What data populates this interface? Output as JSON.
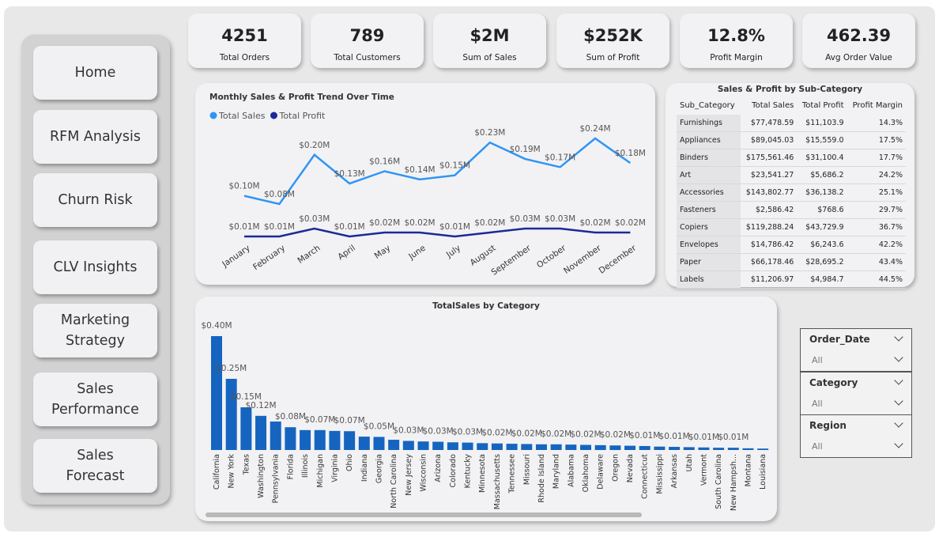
{
  "nav": [
    "Home",
    "RFM Analysis",
    "Churn Risk",
    "CLV Insights",
    "Marketing Strategy",
    "Sales Performance",
    "Sales Forecast"
  ],
  "kpis": [
    {
      "value": "4251",
      "label": "Total Orders"
    },
    {
      "value": "789",
      "label": "Total Customers"
    },
    {
      "value": "$2M",
      "label": "Sum of Sales"
    },
    {
      "value": "$252K",
      "label": "Sum of Profit"
    },
    {
      "value": "12.8%",
      "label": "Profit Margin"
    },
    {
      "value": "462.39",
      "label": "Avg Order Value"
    }
  ],
  "chart_data": [
    {
      "type": "line",
      "title": "Monthly Sales & Profit Trend Over Time",
      "categories": [
        "January",
        "February",
        "March",
        "April",
        "May",
        "June",
        "July",
        "August",
        "September",
        "October",
        "November",
        "December"
      ],
      "series": [
        {
          "name": "Total Sales",
          "color": "#2f95f5",
          "values": [
            0.1,
            0.08,
            0.2,
            0.13,
            0.16,
            0.14,
            0.15,
            0.23,
            0.19,
            0.17,
            0.24,
            0.18
          ],
          "value_labels": [
            "$0.10M",
            "$0.08M",
            "$0.20M",
            "$0.13M",
            "$0.16M",
            "$0.14M",
            "$0.15M",
            "$0.23M",
            "$0.19M",
            "$0.17M",
            "$0.24M",
            "$0.18M"
          ]
        },
        {
          "name": "Total Profit",
          "color": "#1b2a99",
          "values": [
            0.01,
            0.01,
            0.03,
            0.01,
            0.02,
            0.02,
            0.01,
            0.02,
            0.03,
            0.03,
            0.02,
            0.02
          ],
          "value_labels": [
            "$0.01M",
            "$0.01M",
            "$0.03M",
            "$0.01M",
            "$0.02M",
            "$0.02M",
            "$0.01M",
            "$0.02M",
            "$0.03M",
            "$0.03M",
            "$0.02M",
            "$0.02M"
          ]
        }
      ]
    },
    {
      "type": "bar",
      "title": "TotalSales by Category",
      "color": "#1565c0",
      "categories": [
        "California",
        "New York",
        "Texas",
        "Washington",
        "Pennsylvania",
        "Florida",
        "Illinois",
        "Michigan",
        "Virginia",
        "Ohio",
        "Indiana",
        "Georgia",
        "North Carolina",
        "New Jersey",
        "Wisconsin",
        "Arizona",
        "Colorado",
        "Kentucky",
        "Minnesota",
        "Massachusetts",
        "Tennessee",
        "Missouri",
        "Rhode Island",
        "Maryland",
        "Alabama",
        "Oklahoma",
        "Delaware",
        "Oregon",
        "Nevada",
        "Connecticut",
        "Mississippi",
        "Arkansas",
        "Utah",
        "Vermont",
        "South Carolina",
        "New Hampsh...",
        "Montana",
        "Louisiana"
      ],
      "values": [
        0.4,
        0.25,
        0.15,
        0.12,
        0.1,
        0.08,
        0.07,
        0.07,
        0.067,
        0.066,
        0.047,
        0.046,
        0.036,
        0.032,
        0.03,
        0.029,
        0.027,
        0.026,
        0.024,
        0.023,
        0.022,
        0.021,
        0.02,
        0.02,
        0.019,
        0.018,
        0.017,
        0.016,
        0.015,
        0.014,
        0.012,
        0.011,
        0.01,
        0.009,
        0.008,
        0.008,
        0.006,
        0.005
      ],
      "value_labels": [
        "$0.40M",
        "$0.25M",
        "$0.15M",
        "$0.12M",
        null,
        "$0.08M",
        null,
        "$0.07M",
        null,
        "$0.07M",
        null,
        "$0.05M",
        null,
        "$0.03M",
        null,
        "$0.03M",
        null,
        "$0.03M",
        null,
        "$0.02M",
        null,
        "$0.02M",
        null,
        "$0.02M",
        null,
        "$0.02M",
        null,
        "$0.02M",
        null,
        "$0.01M",
        null,
        "$0.01M",
        null,
        "$0.01M",
        null,
        "$0.01M",
        null,
        null
      ]
    }
  ],
  "table": {
    "title": "Sales & Profit by Sub-Category",
    "columns": [
      "Sub_Category",
      "Total Sales",
      "Total Profit",
      "Profit Margin"
    ],
    "rows": [
      [
        "Furnishings",
        "$77,478.59",
        "$11,103.9",
        "14.3%"
      ],
      [
        "Appliances",
        "$89,045.03",
        "$15,559.0",
        "17.5%"
      ],
      [
        "Binders",
        "$175,561.46",
        "$31,100.4",
        "17.7%"
      ],
      [
        "Art",
        "$23,541.27",
        "$5,686.2",
        "24.2%"
      ],
      [
        "Accessories",
        "$143,802.77",
        "$36,138.2",
        "25.1%"
      ],
      [
        "Fasteners",
        "$2,586.42",
        "$768.6",
        "29.7%"
      ],
      [
        "Copiers",
        "$119,288.24",
        "$43,729.9",
        "36.7%"
      ],
      [
        "Envelopes",
        "$14,786.42",
        "$6,243.6",
        "42.2%"
      ],
      [
        "Paper",
        "$66,178.46",
        "$28,695.2",
        "43.4%"
      ],
      [
        "Labels",
        "$11,206.97",
        "$4,984.7",
        "44.5%"
      ]
    ]
  },
  "slicers": [
    {
      "label": "Order_Date",
      "value": "All"
    },
    {
      "label": "Category",
      "value": "All"
    },
    {
      "label": "Region",
      "value": "All"
    }
  ]
}
